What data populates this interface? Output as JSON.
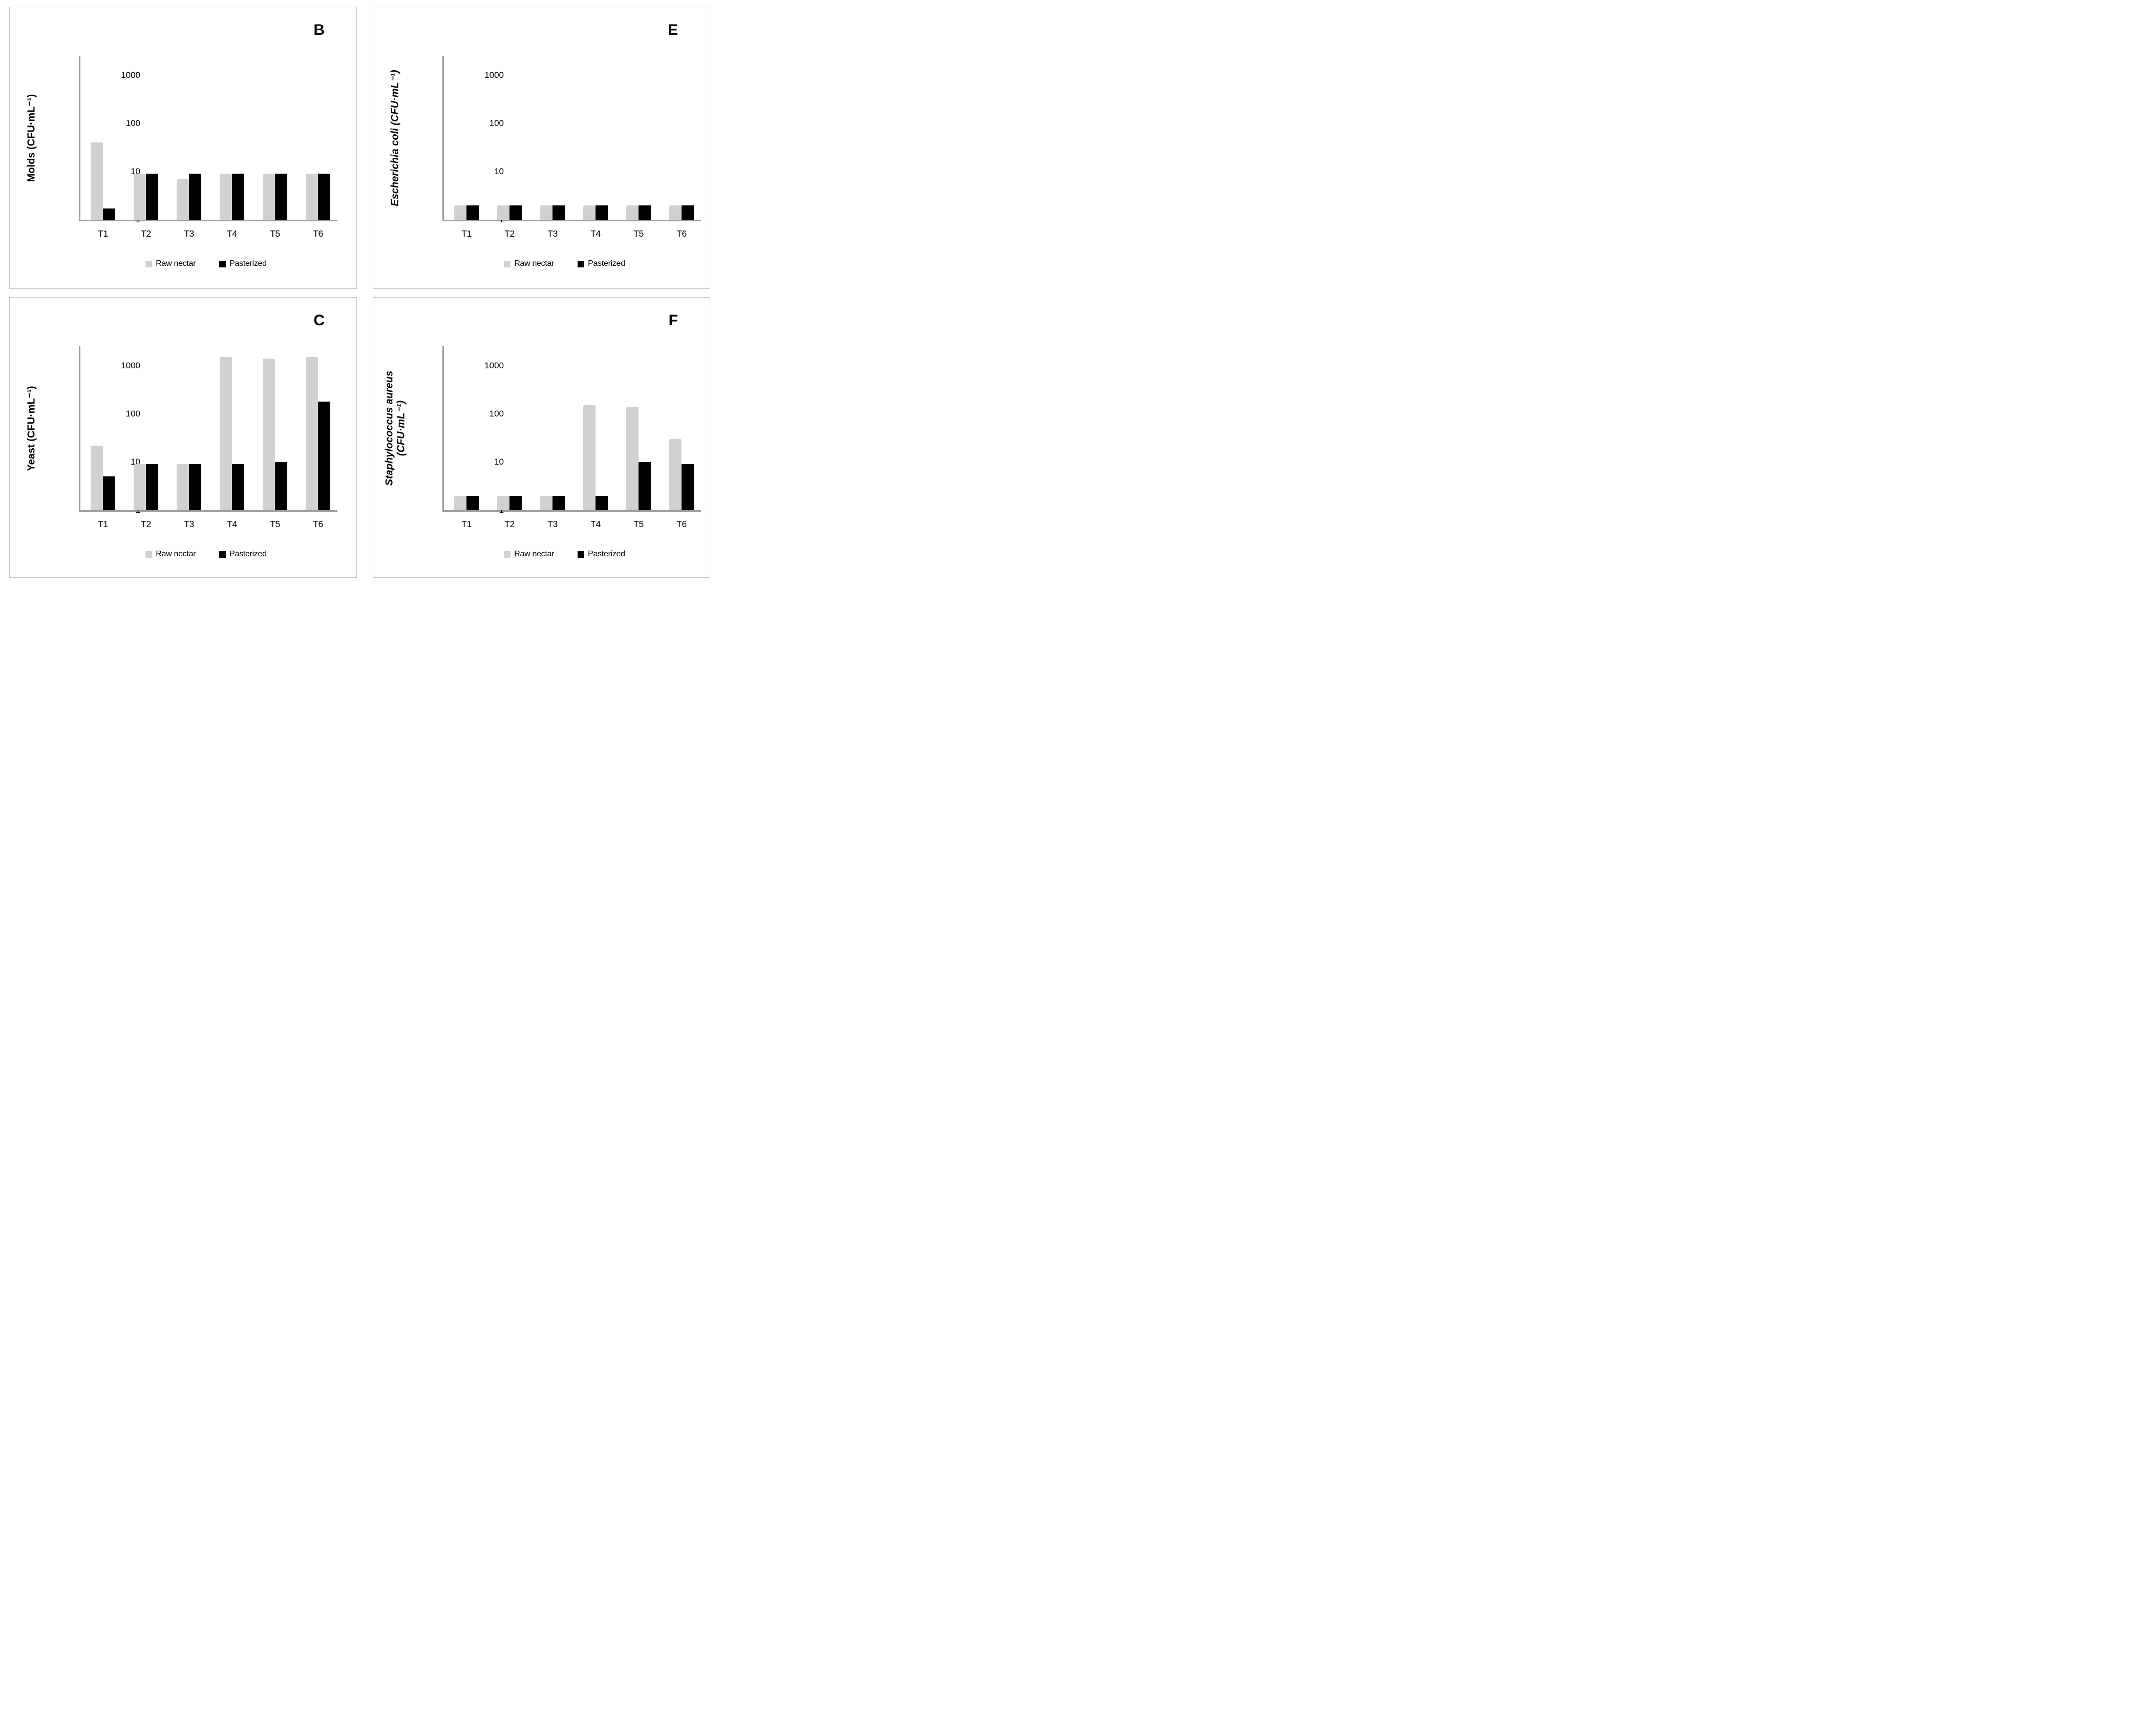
{
  "figure": {
    "panel_letters": [
      "B",
      "E",
      "C",
      "F"
    ],
    "legend": {
      "raw_label": "Raw nectar",
      "pasteurized_label": "Pasterized"
    },
    "colors": {
      "raw_bar": "#d1d1d1",
      "pasteurized_bar": "#000000",
      "axis": "#9b9b9b",
      "panel_border": "#c3c3c3",
      "background": "#ffffff"
    }
  },
  "chart_data": [
    {
      "type": "bar",
      "scale": "log",
      "panel_letter": "B",
      "ylabel_lines": [
        {
          "text": "Molds (CFU·mL⁻¹)",
          "italic": false
        }
      ],
      "categories": [
        "T1",
        "T2",
        "T3",
        "T4",
        "T5",
        "T6"
      ],
      "yticks": [
        1000,
        100,
        10,
        1
      ],
      "ylim": [
        1,
        2000
      ],
      "grid": false,
      "legend_position": "bottom",
      "series": [
        {
          "name": "Raw nectar",
          "color": "#d1d1d1",
          "values": [
            40,
            9,
            7,
            9,
            9,
            9
          ]
        },
        {
          "name": "Pasterized",
          "color": "#000000",
          "values": [
            1.7,
            9,
            9,
            9,
            9,
            9
          ]
        }
      ]
    },
    {
      "type": "bar",
      "scale": "log",
      "panel_letter": "E",
      "ylabel_lines": [
        {
          "text": "Escherichia coli (CFU·mL⁻¹)",
          "italic": true
        }
      ],
      "categories": [
        "T1",
        "T2",
        "T3",
        "T4",
        "T5",
        "T6"
      ],
      "yticks": [
        1000,
        100,
        10,
        1
      ],
      "ylim": [
        1,
        2000
      ],
      "grid": false,
      "legend_position": "bottom",
      "series": [
        {
          "name": "Raw nectar",
          "color": "#d1d1d1",
          "values": [
            2,
            2,
            2,
            2,
            2,
            2
          ]
        },
        {
          "name": "Pasterized",
          "color": "#000000",
          "values": [
            2,
            2,
            2,
            2,
            2,
            2
          ]
        }
      ]
    },
    {
      "type": "bar",
      "scale": "log",
      "panel_letter": "C",
      "ylabel_lines": [
        {
          "text": "Yeast (CFU·mL⁻¹)",
          "italic": false
        }
      ],
      "categories": [
        "T1",
        "T2",
        "T3",
        "T4",
        "T5",
        "T6"
      ],
      "yticks": [
        1000,
        100,
        10,
        1
      ],
      "ylim": [
        1,
        2000
      ],
      "grid": false,
      "legend_position": "bottom",
      "series": [
        {
          "name": "Raw nectar",
          "color": "#d1d1d1",
          "values": [
            22,
            9,
            9,
            1500,
            1400,
            1500
          ]
        },
        {
          "name": "Pasterized",
          "color": "#000000",
          "values": [
            5,
            9,
            9,
            9,
            10,
            180
          ]
        }
      ]
    },
    {
      "type": "bar",
      "scale": "log",
      "panel_letter": "F",
      "ylabel_lines": [
        {
          "text": "Staphylococcus aureus",
          "italic": true
        },
        {
          "text": "(CFU·mL⁻¹)",
          "italic": true
        }
      ],
      "categories": [
        "T1",
        "T2",
        "T3",
        "T4",
        "T5",
        "T6"
      ],
      "yticks": [
        1000,
        100,
        10,
        1
      ],
      "ylim": [
        1,
        2000
      ],
      "grid": false,
      "legend_position": "bottom",
      "series": [
        {
          "name": "Raw nectar",
          "color": "#d1d1d1",
          "values": [
            2,
            2,
            2,
            150,
            140,
            30
          ]
        },
        {
          "name": "Pasterized",
          "color": "#000000",
          "values": [
            2,
            2,
            2,
            2,
            10,
            9
          ]
        }
      ]
    }
  ]
}
